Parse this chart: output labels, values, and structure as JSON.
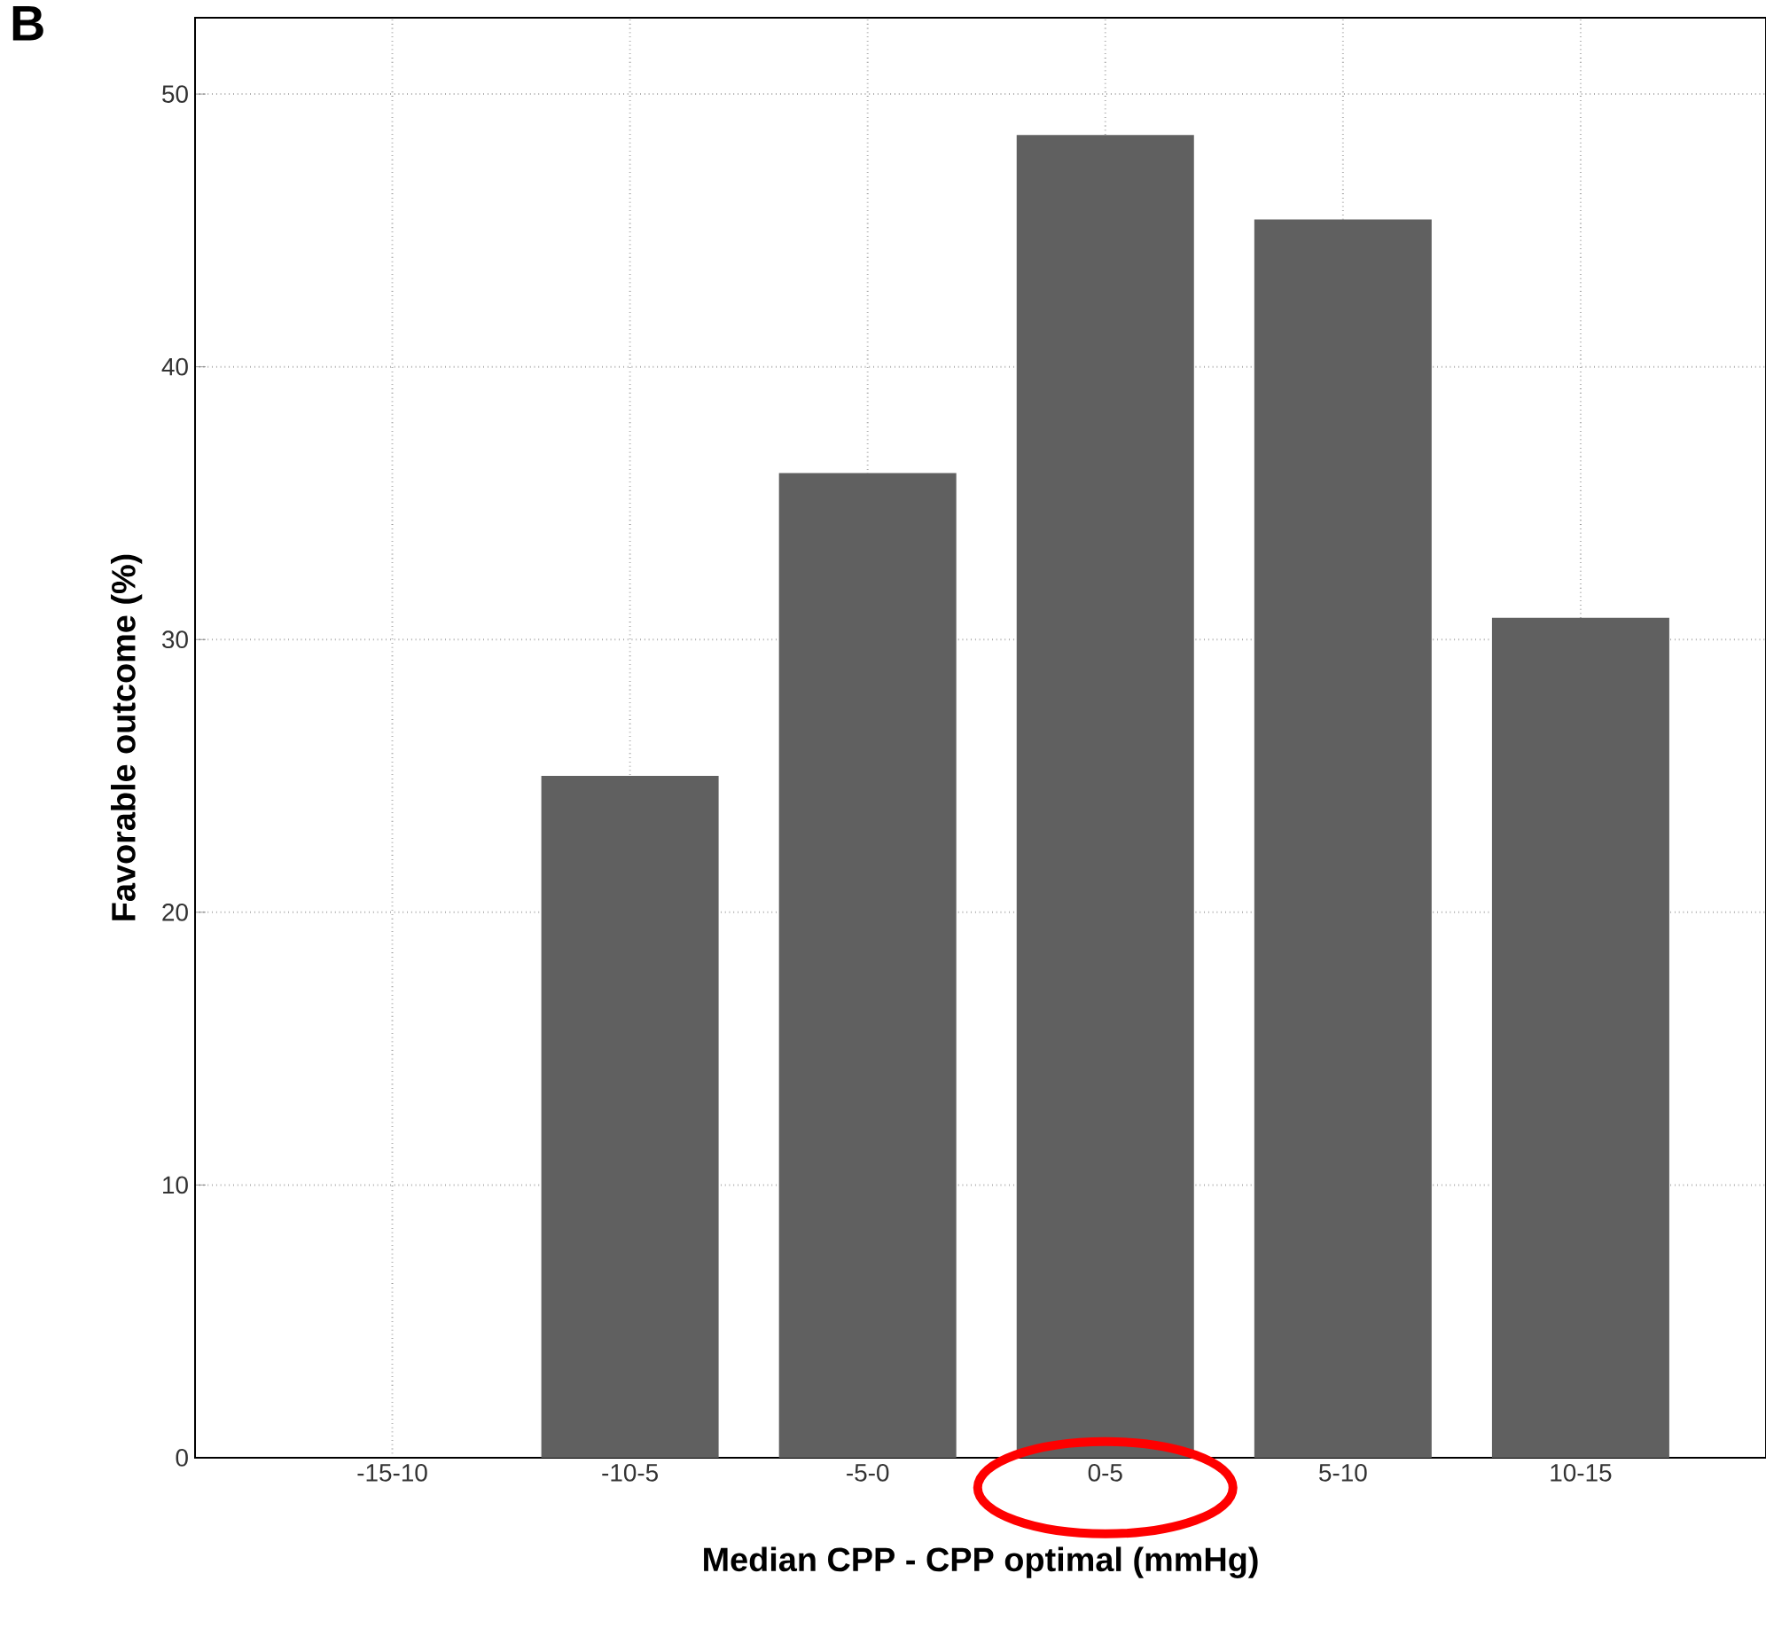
{
  "chart_data": {
    "type": "bar",
    "xlabel": "Median CPP - CPP optimal (mmHg)",
    "ylabel": "Favorable outcome (%)",
    "categories": [
      "-15-10",
      "-10-5",
      "-5-0",
      "0-5",
      "5-10",
      "10-15"
    ],
    "values": [
      0,
      25.0,
      36.1,
      48.5,
      45.4,
      30.8
    ],
    "color": "#606060",
    "ylim": [
      0,
      52.8
    ],
    "yticks": [
      0,
      10,
      20,
      30,
      40,
      50
    ],
    "grid": true,
    "annotations": [
      "B"
    ]
  }
}
